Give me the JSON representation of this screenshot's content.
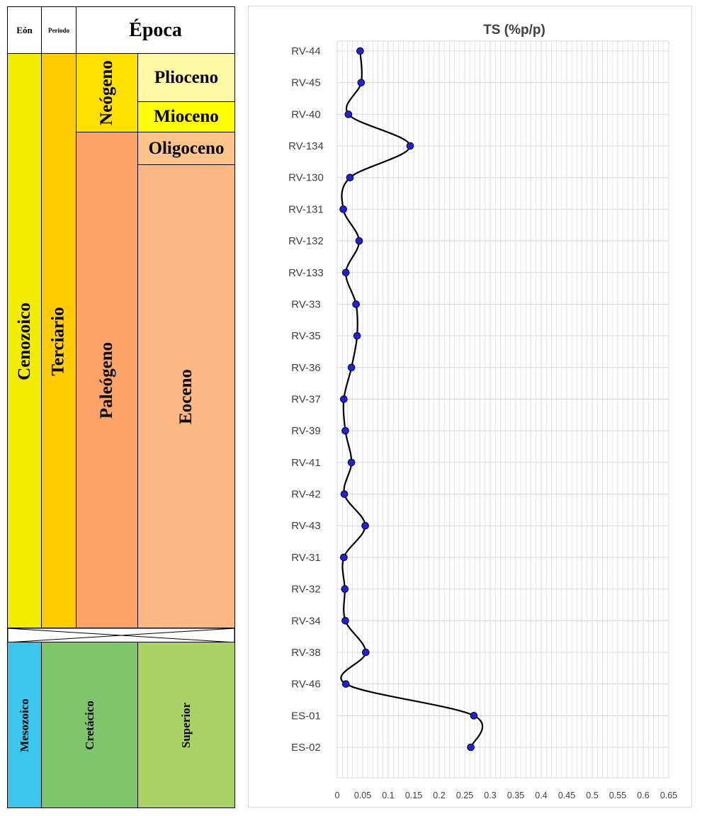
{
  "stratigraphy": {
    "headers": {
      "eon": "Eón",
      "period": "Periodo",
      "epoch": "Época"
    },
    "eons": {
      "cenozoic": "Cenozoico",
      "mesozoic": "Mesozoico"
    },
    "periods": {
      "tertiary": "Terciario",
      "cretaceous": "Cretácico"
    },
    "subperiods": {
      "neogene": "Neógeno",
      "paleogene": "Paleógeno"
    },
    "epochs": {
      "pliocene": "Plioceno",
      "miocene": "Mioceno",
      "oligocene": "Oligoceno",
      "eocene": "Eoceno",
      "upper": "Superior"
    },
    "colors": {
      "cenozoic": "#F2EC00",
      "tertiary": "#FFCC00",
      "neogene": "#FFE100",
      "pliocene": "#FFF9A6",
      "miocene": "#FFFF00",
      "paleogene": "#FCA468",
      "oligocene": "#FDC48A",
      "eocene": "#FCB782",
      "mesozoic": "#3DC6EC",
      "cretaceous": "#7FC56B",
      "upper": "#A9D465"
    }
  },
  "chart_data": {
    "type": "line",
    "title": "TS (%p/p)",
    "categories": [
      "RV-44",
      "RV-45",
      "RV-40",
      "RV-134",
      "RV-130",
      "RV-131",
      "RV-132",
      "RV-133",
      "RV-33",
      "RV-35",
      "RV-36",
      "RV-37",
      "RV-39",
      "RV-41",
      "RV-42",
      "RV-43",
      "RV-31",
      "RV-32",
      "RV-34",
      "RV-38",
      "RV-46",
      "ES-01",
      "ES-02"
    ],
    "values": [
      0.045,
      0.047,
      0.022,
      0.143,
      0.025,
      0.012,
      0.043,
      0.017,
      0.037,
      0.039,
      0.028,
      0.013,
      0.016,
      0.028,
      0.014,
      0.055,
      0.013,
      0.015,
      0.016,
      0.056,
      0.017,
      0.268,
      0.262
    ],
    "x_ticks": [
      "0",
      "0.05",
      "0.1",
      "0.15",
      "0.2",
      "0.25",
      "0.3",
      "0.35",
      "0.4",
      "0.45",
      "0.5",
      "0.55",
      "0.6",
      "0.65"
    ],
    "xlim": [
      0,
      0.65
    ],
    "orientation": "vertical",
    "smooth": true,
    "grid": true,
    "colors": {
      "line": "#000000",
      "marker": "#1F1FE0",
      "grid": "#D9D9D9"
    }
  }
}
